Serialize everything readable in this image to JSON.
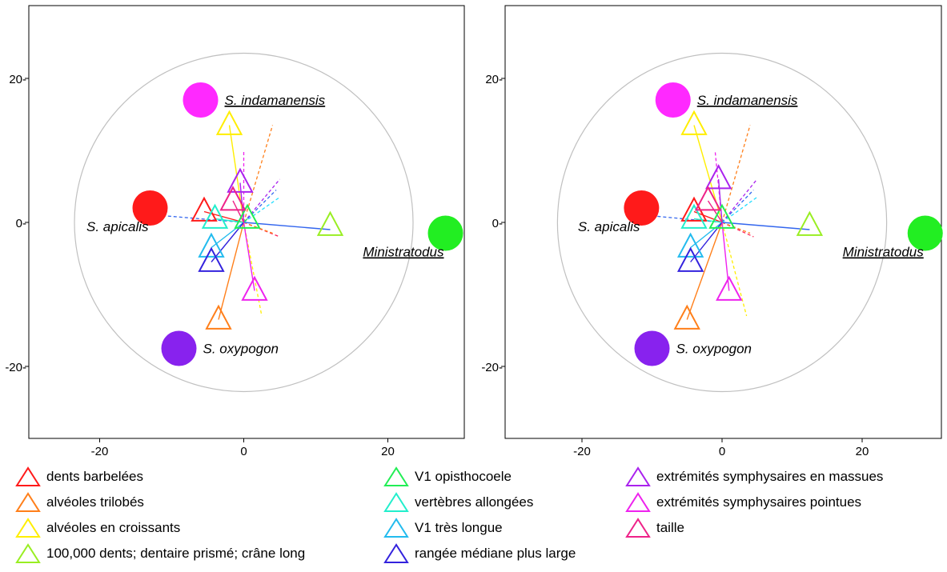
{
  "chart_data": [
    {
      "type": "scatter",
      "xlim": [
        -30,
        30
      ],
      "ylim": [
        -30,
        30
      ],
      "xticks": [
        -20,
        0,
        20
      ],
      "yticks": [
        20,
        0,
        -20
      ],
      "xtick_labels": [
        "-20",
        "0",
        "20"
      ],
      "ytick_labels": [
        "20-",
        "0-",
        "-20-"
      ],
      "grid": false,
      "circle_radius": 23.5,
      "taxa": [
        {
          "label": "S. indamanensis",
          "underline": true,
          "x": -6,
          "y": 17,
          "color": "#ff29ff",
          "label_side": "right"
        },
        {
          "label": "S. apicalis",
          "underline": false,
          "x": -13,
          "y": 2,
          "color": "#ff1a1a",
          "label_side": "below-left"
        },
        {
          "label": "S. oxypogon",
          "underline": false,
          "x": -9,
          "y": -17.5,
          "color": "#8822ee",
          "label_side": "right"
        },
        {
          "label": "Ministratodus",
          "underline": true,
          "x": 28,
          "y": -1.5,
          "color": "#22ee22",
          "label_side": "below-left"
        }
      ],
      "characters": [
        {
          "name": "dents barbelées",
          "x": -5.5,
          "y": 1.5,
          "color": "#ff1a1a"
        },
        {
          "name": "alvéoles trilobés",
          "x": -3.5,
          "y": -13.5,
          "color": "#ff7f1a"
        },
        {
          "name": "alvéoles en croissants",
          "x": -2,
          "y": 13.5,
          "color": "#ffee00"
        },
        {
          "name": "100,000 dents; dentaire prismé; crâne long",
          "x": 12,
          "y": -0.5,
          "color": "#99ee22"
        },
        {
          "name": "V1 opisthocoele",
          "x": 0.5,
          "y": 0.5,
          "color": "#22ee55"
        },
        {
          "name": "vertèbres allongées",
          "x": -4,
          "y": 0.5,
          "color": "#22eecc"
        },
        {
          "name": "V1 très longue",
          "x": -4.5,
          "y": -3.5,
          "color": "#22bbee"
        },
        {
          "name": "rangée médiane plus large",
          "x": -4.5,
          "y": -5.5,
          "color": "#3322dd"
        },
        {
          "name": "extrémités symphysaires en massues",
          "x": -0.5,
          "y": 5.5,
          "color": "#aa22ee"
        },
        {
          "name": "extrémités symphysaires pointues",
          "x": 1.5,
          "y": -9.5,
          "color": "#ee22ee"
        },
        {
          "name": "taille",
          "x": -1.5,
          "y": 3,
          "color": "#ee2288"
        }
      ],
      "vectors_solid": [
        {
          "color": "#ff1a1a",
          "x": -5.5,
          "y": 1.5
        },
        {
          "color": "#ff7f1a",
          "x": -3.5,
          "y": -13.5
        },
        {
          "color": "#ffee00",
          "x": -2,
          "y": 13.5
        },
        {
          "color": "#3366ee",
          "x": 12,
          "y": -1
        },
        {
          "color": "#22ee55",
          "x": 0.5,
          "y": 0.5
        },
        {
          "color": "#22eecc",
          "x": -4,
          "y": 0.5
        },
        {
          "color": "#22bbee",
          "x": -4.5,
          "y": -3.5
        },
        {
          "color": "#3322dd",
          "x": -4.5,
          "y": -5.5
        },
        {
          "color": "#aa22ee",
          "x": -0.5,
          "y": 5.5
        },
        {
          "color": "#ee22ee",
          "x": 1.5,
          "y": -9.5
        },
        {
          "color": "#ee2288",
          "x": -1.5,
          "y": 3
        }
      ],
      "vectors_dashed": [
        {
          "color": "#3366ee",
          "x": -12,
          "y": 1
        },
        {
          "color": "#ff7f1a",
          "x": 4,
          "y": 13.5
        },
        {
          "color": "#aa22ee",
          "x": 5,
          "y": 6
        },
        {
          "color": "#3366ee",
          "x": 4.5,
          "y": 4.5
        },
        {
          "color": "#22ddff",
          "x": 5,
          "y": 3.5
        },
        {
          "color": "#ffee00",
          "x": 2.5,
          "y": -13
        },
        {
          "color": "#ff2255",
          "x": 5,
          "y": -2
        },
        {
          "color": "#ff7f1a",
          "x": 4,
          "y": -1.5
        },
        {
          "color": "#ee22ee",
          "x": 0,
          "y": 10
        }
      ]
    },
    {
      "type": "scatter",
      "xlim": [
        -30,
        30
      ],
      "ylim": [
        -30,
        30
      ],
      "xticks": [
        -20,
        0,
        20
      ],
      "yticks": [
        20,
        0,
        -20
      ],
      "xtick_labels": [
        "-20",
        "0",
        "20"
      ],
      "ytick_labels": [
        "20-",
        "0-",
        "-20-"
      ],
      "grid": false,
      "circle_radius": 23.5,
      "taxa": [
        {
          "label": "S. indamanensis",
          "underline": true,
          "x": -7,
          "y": 17,
          "color": "#ff29ff",
          "label_side": "right"
        },
        {
          "label": "S. apicalis",
          "underline": false,
          "x": -11.5,
          "y": 2,
          "color": "#ff1a1a",
          "label_side": "below-left"
        },
        {
          "label": "S. oxypogon",
          "underline": false,
          "x": -10,
          "y": -17.5,
          "color": "#8822ee",
          "label_side": "right"
        },
        {
          "label": "Ministratodus",
          "underline": true,
          "x": 29,
          "y": -1.5,
          "color": "#22ee22",
          "label_side": "below-left"
        }
      ],
      "characters": [
        {
          "name": "dents barbelées",
          "x": -4,
          "y": 1.5,
          "color": "#ff1a1a"
        },
        {
          "name": "alvéoles trilobés",
          "x": -5,
          "y": -13.5,
          "color": "#ff7f1a"
        },
        {
          "name": "alvéoles en croissants",
          "x": -4,
          "y": 13.5,
          "color": "#ffee00"
        },
        {
          "name": "100,000 dents; dentaire prismé; crâne long",
          "x": 12.5,
          "y": -0.5,
          "color": "#99ee22"
        },
        {
          "name": "V1 opisthocoele",
          "x": 0,
          "y": 0.5,
          "color": "#22ee55"
        },
        {
          "name": "vertèbres allongées",
          "x": -4,
          "y": 0.5,
          "color": "#22eecc"
        },
        {
          "name": "V1 très longue",
          "x": -4.5,
          "y": -3.5,
          "color": "#22bbee"
        },
        {
          "name": "rangée médiane plus large",
          "x": -4.5,
          "y": -5.5,
          "color": "#3322dd"
        },
        {
          "name": "extrémités symphysaires en massues",
          "x": -0.5,
          "y": 6,
          "color": "#aa22ee"
        },
        {
          "name": "extrémités symphysaires pointues",
          "x": 1,
          "y": -9.5,
          "color": "#ee22ee"
        },
        {
          "name": "taille",
          "x": -2,
          "y": 3,
          "color": "#ee2288"
        }
      ],
      "vectors_solid": [
        {
          "color": "#ff1a1a",
          "x": -4,
          "y": 1.5
        },
        {
          "color": "#ff7f1a",
          "x": -5,
          "y": -13.5
        },
        {
          "color": "#ffee00",
          "x": -4,
          "y": 13.5
        },
        {
          "color": "#3366ee",
          "x": 12.5,
          "y": -1
        },
        {
          "color": "#22ee55",
          "x": 0,
          "y": 0.5
        },
        {
          "color": "#22eecc",
          "x": -4,
          "y": 0.5
        },
        {
          "color": "#22bbee",
          "x": -4.5,
          "y": -3.5
        },
        {
          "color": "#3322dd",
          "x": -4.5,
          "y": -5.5
        },
        {
          "color": "#aa22ee",
          "x": -0.5,
          "y": 6
        },
        {
          "color": "#ee22ee",
          "x": 1,
          "y": -9.5
        },
        {
          "color": "#ee2288",
          "x": -2,
          "y": 3
        }
      ],
      "vectors_dashed": [
        {
          "color": "#3366ee",
          "x": -11,
          "y": 1
        },
        {
          "color": "#ff7f1a",
          "x": 4,
          "y": 13.5
        },
        {
          "color": "#aa22ee",
          "x": 5,
          "y": 6
        },
        {
          "color": "#3366ee",
          "x": 4.5,
          "y": 4.5
        },
        {
          "color": "#22ddff",
          "x": 5,
          "y": 3.5
        },
        {
          "color": "#ffee00",
          "x": 3.5,
          "y": -13
        },
        {
          "color": "#ff2255",
          "x": 4.5,
          "y": -2
        },
        {
          "color": "#ff7f1a",
          "x": 4,
          "y": -1.5
        },
        {
          "color": "#ee22ee",
          "x": -1,
          "y": 10
        }
      ]
    }
  ],
  "legend": {
    "columns": [
      [
        {
          "label": "dents barbelées",
          "color": "#ff1a1a"
        },
        {
          "label": "alvéoles trilobés",
          "color": "#ff7f1a"
        },
        {
          "label": "alvéoles en croissants",
          "color": "#ffee00"
        },
        {
          "label": "100,000 dents; dentaire prismé; crâne long",
          "color": "#99ee22"
        }
      ],
      [
        {
          "label": "V1 opisthocoele",
          "color": "#22ee55"
        },
        {
          "label": "vertèbres allongées",
          "color": "#22eecc"
        },
        {
          "label": "V1 très longue",
          "color": "#22bbee"
        },
        {
          "label": "rangée médiane plus large",
          "color": "#3322dd"
        }
      ],
      [
        {
          "label": "extrémités symphysaires en massues",
          "color": "#aa22ee"
        },
        {
          "label": "extrémités symphysaires pointues",
          "color": "#ee22ee"
        },
        {
          "label": "taille",
          "color": "#ee2288"
        }
      ]
    ]
  }
}
